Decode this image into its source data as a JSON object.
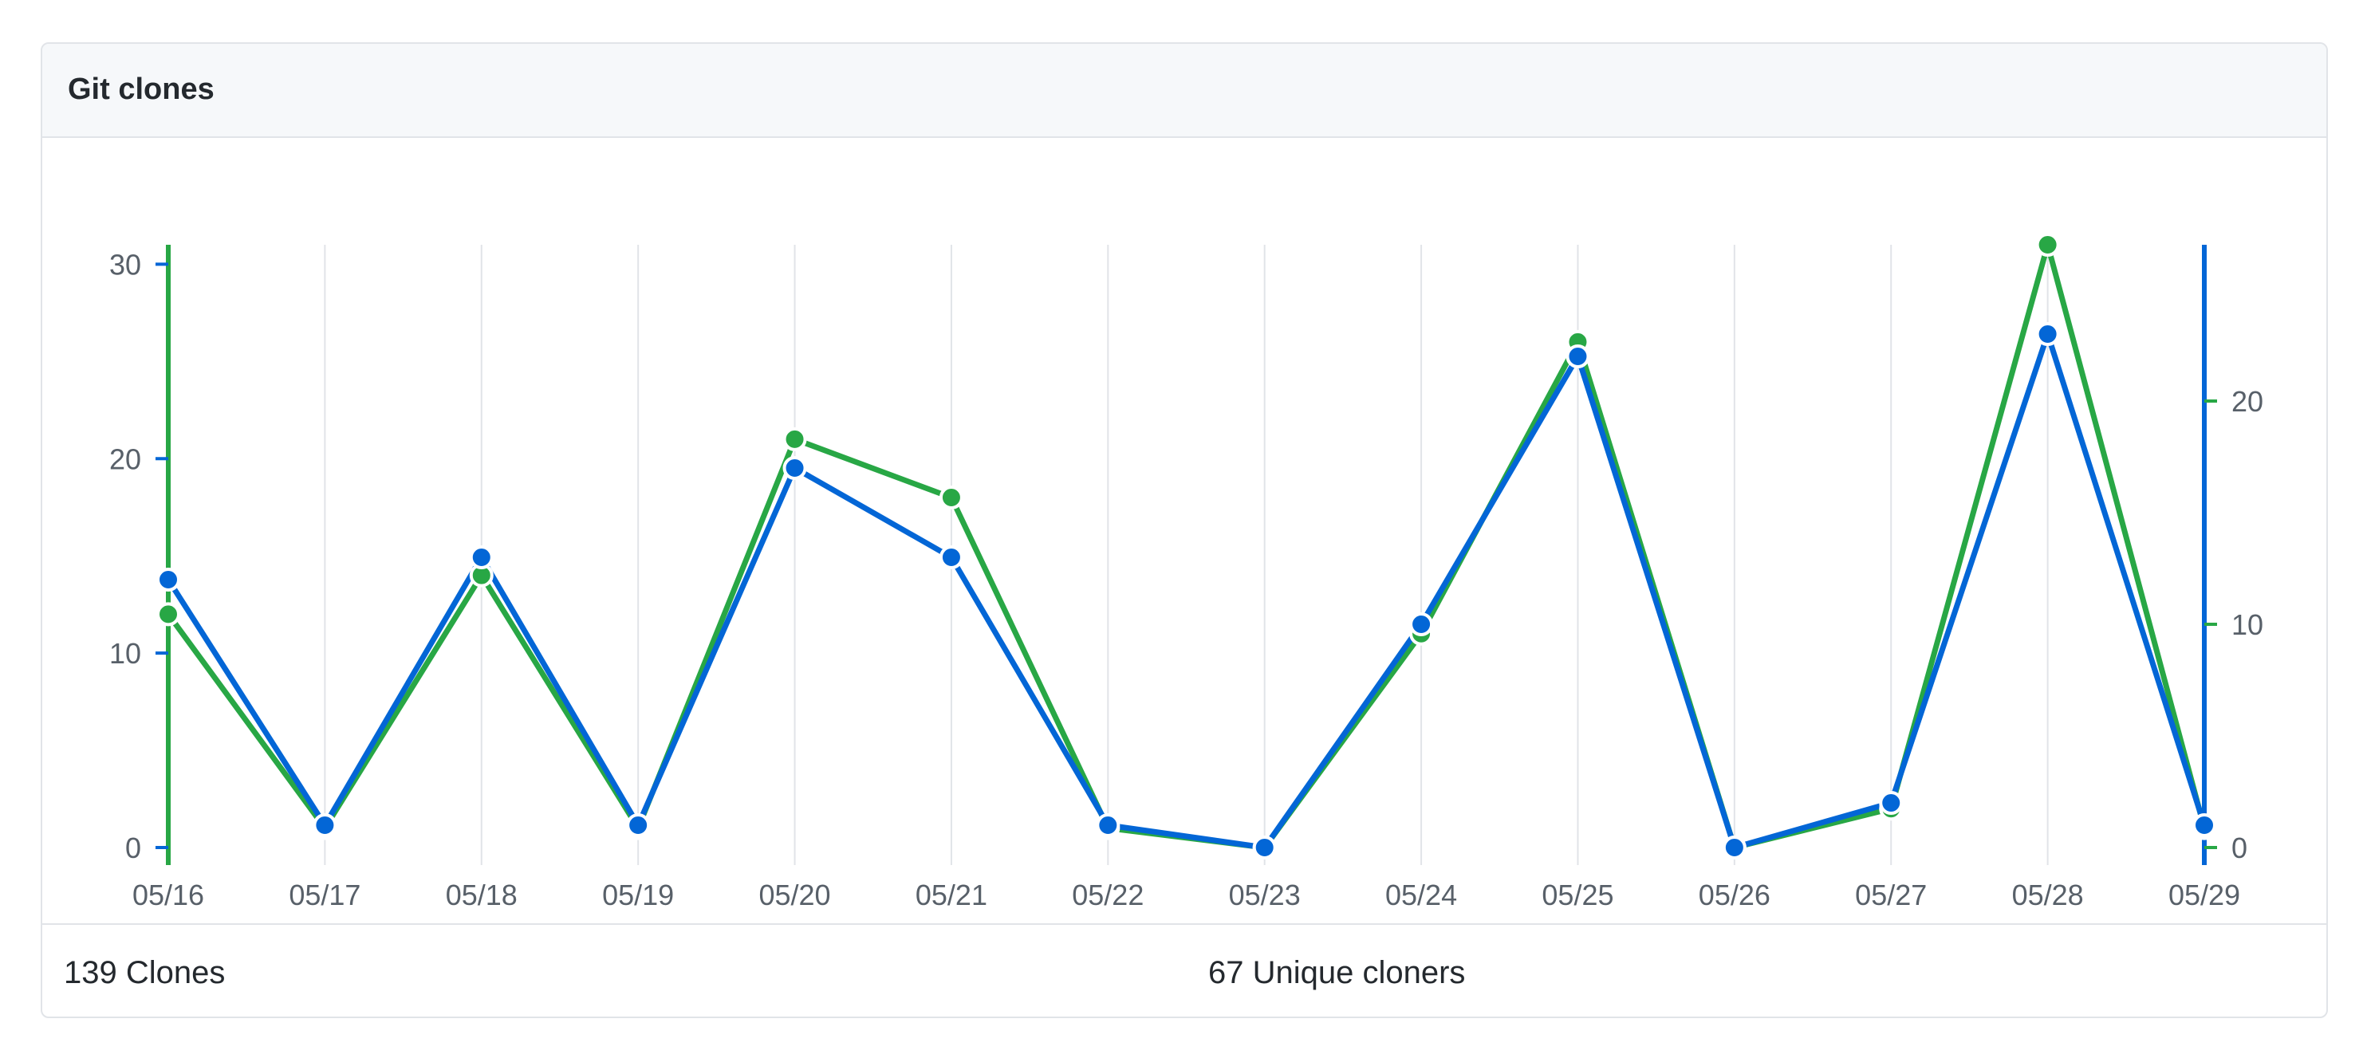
{
  "panel": {
    "title": "Git clones"
  },
  "summary": {
    "clones": "139 Clones",
    "unique": "67 Unique cloners"
  },
  "colors": {
    "clones": "#28a745",
    "unique": "#0366d6",
    "grid": "#e1e4e8",
    "tick_text": "#586069"
  },
  "chart_data": {
    "type": "line",
    "categories": [
      "05/16",
      "05/17",
      "05/18",
      "05/19",
      "05/20",
      "05/21",
      "05/22",
      "05/23",
      "05/24",
      "05/25",
      "05/26",
      "05/27",
      "05/28",
      "05/29"
    ],
    "series": [
      {
        "values": [
          12,
          1,
          14,
          1,
          21,
          18,
          1,
          0,
          11,
          26,
          0,
          2,
          31,
          1
        ],
        "axis": "left"
      },
      {
        "values": [
          12,
          1,
          13,
          1,
          17,
          13,
          1,
          0,
          10,
          22,
          0,
          2,
          23,
          1
        ],
        "axis": "right"
      }
    ],
    "y_left": {
      "ylim": [
        0,
        31
      ],
      "ticks": [
        "0",
        "10",
        "20",
        "30"
      ]
    },
    "y_right": {
      "ylim": [
        0,
        27
      ],
      "ticks": [
        "0",
        "10",
        "20"
      ]
    },
    "grid": "vertical",
    "legend": "none"
  }
}
